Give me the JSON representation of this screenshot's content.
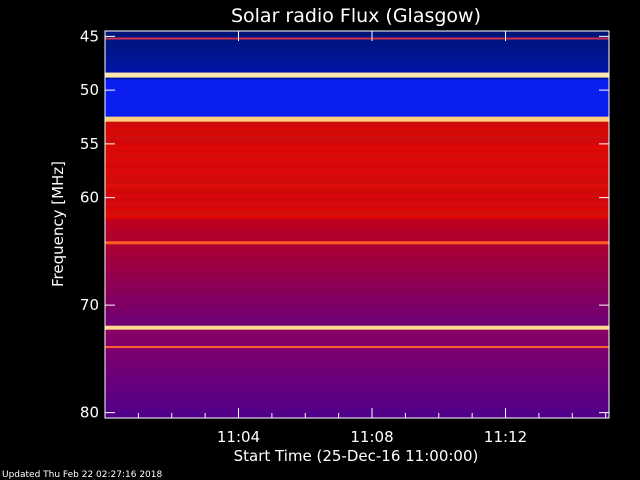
{
  "chart_data": {
    "type": "heatmap",
    "title": "Solar radio Flux (Glasgow)",
    "ylabel": "Frequency [MHz]",
    "xlabel": "Start Time (25-Dec-16 11:00:00)",
    "footer": "Updated Thu Feb 22 02:27:16 2018",
    "x_range_min": [
      0,
      15.1
    ],
    "y_range_mhz": [
      44.5,
      80.5
    ],
    "y_ticks": [
      {
        "value": 45,
        "label": "45"
      },
      {
        "value": 50,
        "label": "50"
      },
      {
        "value": 55,
        "label": "55"
      },
      {
        "value": 60,
        "label": "60"
      },
      {
        "value": 70,
        "label": "70"
      },
      {
        "value": 80,
        "label": "80"
      }
    ],
    "x_ticks": [
      {
        "value": 4,
        "label": "11:04"
      },
      {
        "value": 8,
        "label": "11:08"
      },
      {
        "value": 12,
        "label": "11:12"
      }
    ],
    "colors": {
      "background": "#000000",
      "low": "#000a6a",
      "mid": "#7a10a0",
      "high": "#e00000",
      "peak": "#ffe080"
    }
  }
}
